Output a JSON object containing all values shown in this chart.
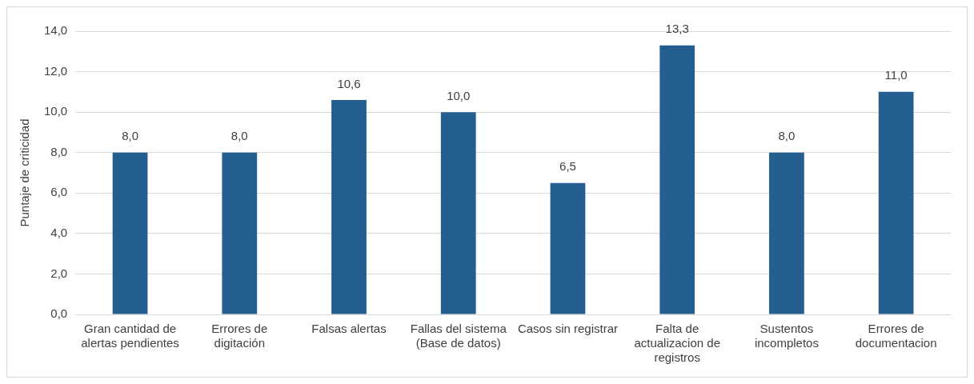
{
  "chart_data": {
    "type": "bar",
    "ylabel": "Puntaje de criticidad",
    "categories": [
      "Gran cantidad de alertas pendientes",
      "Errores de digitación",
      "Falsas alertas",
      "Fallas del sistema (Base de datos)",
      "Casos sin registrar",
      "Falta de actualizacion de registros",
      "Sustentos incompletos",
      "Errores de documentacion"
    ],
    "values": [
      8.0,
      8.0,
      10.6,
      10.0,
      6.5,
      13.3,
      8.0,
      11.0
    ],
    "value_labels": [
      "8,0",
      "8,0",
      "10,6",
      "10,0",
      "6,5",
      "13,3",
      "8,0",
      "11,0"
    ],
    "color": "#255e91",
    "ylim": [
      0,
      14
    ],
    "yticks": [
      {
        "value": 0,
        "label": "0,0"
      },
      {
        "value": 2,
        "label": "2,0"
      },
      {
        "value": 4,
        "label": "4,0"
      },
      {
        "value": 6,
        "label": "6,0"
      },
      {
        "value": 8,
        "label": "8,0"
      },
      {
        "value": 10,
        "label": "10,0"
      },
      {
        "value": 12,
        "label": "12,0"
      },
      {
        "value": 14,
        "label": "14,0"
      }
    ],
    "grid": "y"
  }
}
